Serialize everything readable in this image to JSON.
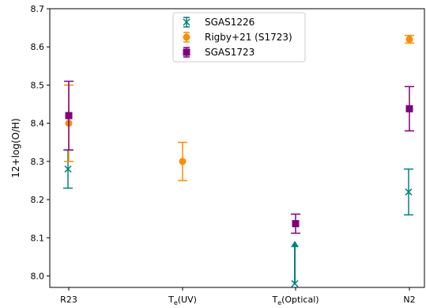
{
  "chart_data": {
    "type": "scatter",
    "categories": [
      "R23",
      "Te(UV)",
      "Te(Optical)",
      "N2"
    ],
    "ylabel": "12+log(O/H)",
    "ylim": [
      7.97,
      8.7
    ],
    "yticks": [
      "8.0",
      "8.1",
      "8.2",
      "8.3",
      "8.4",
      "8.5",
      "8.6",
      "8.7"
    ],
    "grid": false,
    "legend_position": "top-center",
    "series": [
      {
        "name": "SGAS1226",
        "marker": "x",
        "color": "#008080",
        "points": [
          {
            "x": "R23",
            "y": 8.28,
            "err_low": 0.05,
            "err_high": 0.05
          },
          {
            "x": "Te(Optical)",
            "y": 7.98,
            "lower_limit": true,
            "arrow_to": 8.09
          },
          {
            "x": "N2",
            "y": 8.22,
            "err_low": 0.06,
            "err_high": 0.06
          }
        ]
      },
      {
        "name": "Rigby+21 (S1723)",
        "marker": "o",
        "color": "#ff8c00",
        "points": [
          {
            "x": "R23",
            "y": 8.4,
            "err_low": 0.1,
            "err_high": 0.1
          },
          {
            "x": "Te(UV)",
            "y": 8.3,
            "err_low": 0.05,
            "err_high": 0.05
          },
          {
            "x": "N2",
            "y": 8.62,
            "err_low": 0.01,
            "err_high": 0.01
          }
        ]
      },
      {
        "name": "SGAS1723",
        "marker": "s",
        "color": "#800080",
        "points": [
          {
            "x": "R23",
            "y": 8.42,
            "err_low": 0.09,
            "err_high": 0.09
          },
          {
            "x": "Te(Optical)",
            "y": 8.137,
            "err_low": 0.025,
            "err_high": 0.025
          },
          {
            "x": "N2",
            "y": 8.438,
            "err_low": 0.058,
            "err_high": 0.058
          }
        ]
      }
    ]
  }
}
